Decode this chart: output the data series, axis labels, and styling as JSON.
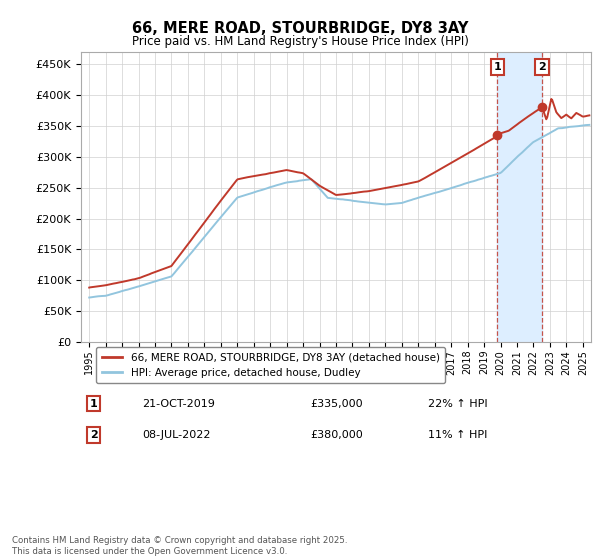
{
  "title": "66, MERE ROAD, STOURBRIDGE, DY8 3AY",
  "subtitle": "Price paid vs. HM Land Registry's House Price Index (HPI)",
  "ylabel_ticks": [
    "£0",
    "£50K",
    "£100K",
    "£150K",
    "£200K",
    "£250K",
    "£300K",
    "£350K",
    "£400K",
    "£450K"
  ],
  "ytick_values": [
    0,
    50000,
    100000,
    150000,
    200000,
    250000,
    300000,
    350000,
    400000,
    450000
  ],
  "ylim": [
    0,
    470000
  ],
  "xlim_start": 1994.5,
  "xlim_end": 2025.5,
  "xtick_years": [
    1995,
    1996,
    1997,
    1998,
    1999,
    2000,
    2001,
    2002,
    2003,
    2004,
    2005,
    2006,
    2007,
    2008,
    2009,
    2010,
    2011,
    2012,
    2013,
    2014,
    2015,
    2016,
    2017,
    2018,
    2019,
    2020,
    2021,
    2022,
    2023,
    2024,
    2025
  ],
  "hpi_color": "#92c5de",
  "price_color": "#c0392b",
  "sale1_x": 2019.81,
  "sale1_y": 335000,
  "sale2_x": 2022.52,
  "sale2_y": 380000,
  "legend_line1": "66, MERE ROAD, STOURBRIDGE, DY8 3AY (detached house)",
  "legend_line2": "HPI: Average price, detached house, Dudley",
  "sale1_date": "21-OCT-2019",
  "sale1_price": "£335,000",
  "sale1_hpi_pct": "22% ↑ HPI",
  "sale2_date": "08-JUL-2022",
  "sale2_price": "£380,000",
  "sale2_hpi_pct": "11% ↑ HPI",
  "footer": "Contains HM Land Registry data © Crown copyright and database right 2025.\nThis data is licensed under the Open Government Licence v3.0.",
  "background_color": "#ffffff",
  "grid_color": "#d0d0d0",
  "shaded_region_color": "#ddeeff"
}
